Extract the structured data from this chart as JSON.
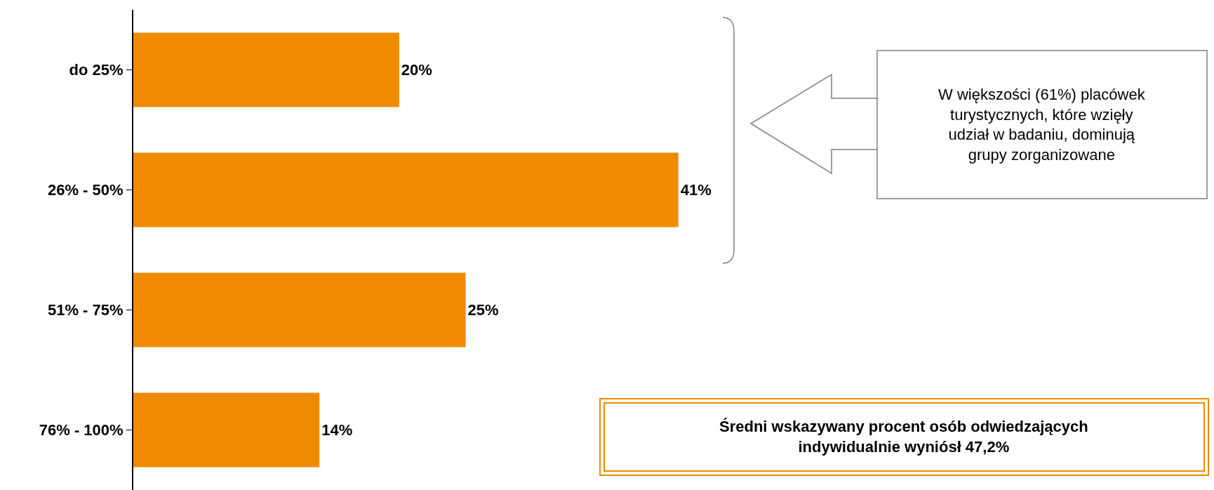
{
  "chart_data": {
    "type": "bar",
    "orientation": "horizontal",
    "categories": [
      "do 25%",
      "26% - 50%",
      "51% - 75%",
      "76% - 100%"
    ],
    "values": [
      20,
      41,
      25,
      14
    ],
    "value_labels": [
      "20%",
      "41%",
      "25%",
      "14%"
    ],
    "color": "#f08a00",
    "legend": false,
    "annotations": [
      "W większości (61%) placówek\nturystycznych, które wzięły\nudział w badaniu, dominują\ngrupy zorganizowane",
      "Średni wskazywany procent osób odwiedzających\nindywidualnie wyniósł 47,2%"
    ]
  }
}
